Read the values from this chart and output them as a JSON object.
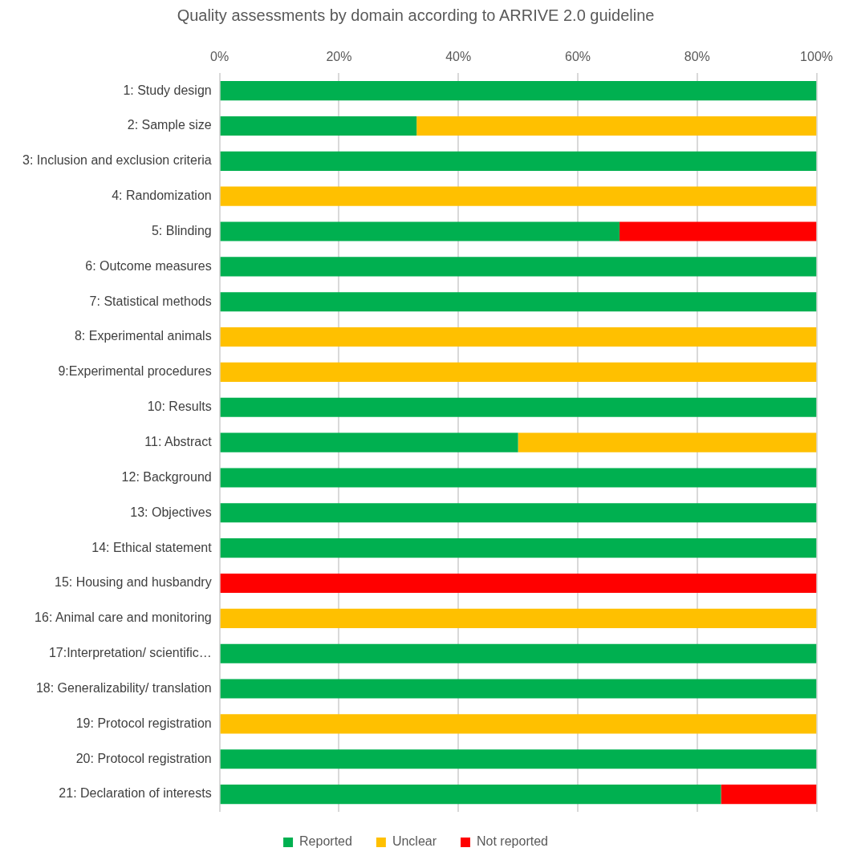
{
  "chart_data": {
    "type": "bar",
    "title": "Quality assessments by domain according to ARRIVE 2.0 guideline",
    "orientation": "horizontal",
    "stacked": true,
    "categories": [
      "1: Study design",
      "2: Sample size",
      "3: Inclusion and exclusion criteria",
      "4: Randomization",
      "5: Blinding",
      "6: Outcome measures",
      "7: Statistical methods",
      "8: Experimental animals",
      "9:Experimental procedures",
      "10: Results",
      "11: Abstract",
      "12: Background",
      "13: Objectives",
      "14: Ethical statement",
      "15: Housing and husbandry",
      "16: Animal care and monitoring",
      "17:Interpretation/ scientific…",
      "18: Generalizability/ translation",
      "19: Protocol registration",
      "20: Protocol registration",
      "21: Declaration of interests"
    ],
    "series": [
      {
        "name": "Reported",
        "color": "#00b050",
        "values": [
          100,
          33,
          100,
          0,
          67,
          100,
          100,
          0,
          0,
          100,
          50,
          100,
          100,
          100,
          0,
          0,
          100,
          100,
          0,
          100,
          84
        ]
      },
      {
        "name": "Unclear",
        "color": "#ffc000",
        "values": [
          0,
          67,
          0,
          100,
          0,
          0,
          0,
          100,
          100,
          0,
          50,
          0,
          0,
          0,
          0,
          100,
          0,
          0,
          100,
          0,
          0
        ]
      },
      {
        "name": "Not reported",
        "color": "#ff0000",
        "values": [
          0,
          0,
          0,
          0,
          33,
          0,
          0,
          0,
          0,
          0,
          0,
          0,
          0,
          0,
          100,
          0,
          0,
          0,
          0,
          0,
          16
        ]
      }
    ],
    "xlim": [
      0,
      100
    ],
    "xticks": [
      {
        "value": 0,
        "label": "0%"
      },
      {
        "value": 20,
        "label": "20%"
      },
      {
        "value": 40,
        "label": "40%"
      },
      {
        "value": 60,
        "label": "60%"
      },
      {
        "value": 80,
        "label": "80%"
      },
      {
        "value": 100,
        "label": "100%"
      }
    ],
    "grid": "x",
    "legend": "bottom"
  }
}
